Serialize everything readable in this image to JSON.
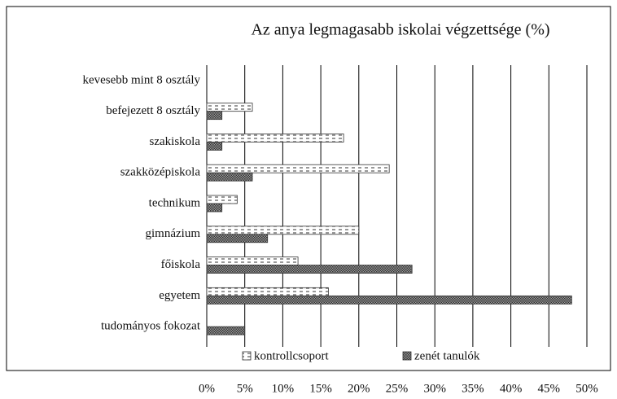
{
  "chart_data": {
    "type": "hbar",
    "title": "Az anya legmagasabb iskolai végzettsége (%)",
    "categories": [
      "kevesebb mint 8 osztály",
      "befejezett 8 osztály",
      "szakiskola",
      "szakközépiskola",
      "technikum",
      "gimnázium",
      "főiskola",
      "egyetem",
      "tudományos fokozat"
    ],
    "series": [
      {
        "name": "kontrollcsoport",
        "color": "#ffffff",
        "pattern": "dashed",
        "values": [
          0,
          6,
          18,
          24,
          4,
          20,
          12,
          16,
          0
        ]
      },
      {
        "name": "zenét tanulók",
        "color": "#6e6e6e",
        "pattern": "crosshatch",
        "values": [
          0,
          2,
          2,
          6,
          2,
          8,
          27,
          48,
          5
        ]
      }
    ],
    "xlim": [
      0,
      50
    ],
    "xticks": [
      {
        "value": 0,
        "label": "0%"
      },
      {
        "value": 5,
        "label": "5%"
      },
      {
        "value": 10,
        "label": "10%"
      },
      {
        "value": 15,
        "label": "15%"
      },
      {
        "value": 20,
        "label": "20%"
      },
      {
        "value": 25,
        "label": "25%"
      },
      {
        "value": 30,
        "label": "30%"
      },
      {
        "value": 35,
        "label": "35%"
      },
      {
        "value": 40,
        "label": "40%"
      },
      {
        "value": 45,
        "label": "45%"
      },
      {
        "value": 50,
        "label": "50%"
      }
    ],
    "grid": true,
    "legend": "bottom"
  }
}
